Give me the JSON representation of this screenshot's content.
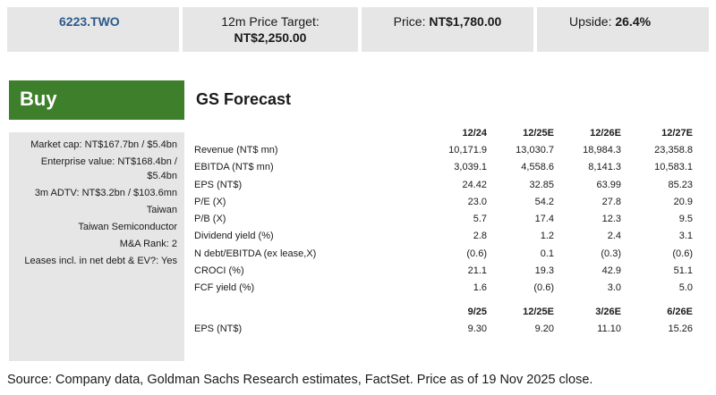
{
  "header": {
    "ticker": "6223.TWO",
    "target_label": "12m Price Target:",
    "target_value": "NT$2,250.00",
    "price_label": "Price:",
    "price_value": "NT$1,780.00",
    "upside_label": "Upside:",
    "upside_value": "26.4%"
  },
  "rating": "Buy",
  "company_info": [
    "Market cap: NT$167.7bn / $5.4bn",
    "Enterprise value: NT$168.4bn / $5.4bn",
    "3m ADTV: NT$3.2bn / $103.6mn",
    "Taiwan",
    "Taiwan Semiconductor",
    "M&A Rank: 2",
    "Leases incl. in net debt & EV?: Yes"
  ],
  "forecast": {
    "title": "GS Forecast",
    "columns": [
      "12/24",
      "12/25E",
      "12/26E",
      "12/27E"
    ],
    "rows": [
      {
        "label": "Revenue (NT$ mn)",
        "values": [
          "10,171.9",
          "13,030.7",
          "18,984.3",
          "23,358.8"
        ]
      },
      {
        "label": "EBITDA (NT$ mn)",
        "values": [
          "3,039.1",
          "4,558.6",
          "8,141.3",
          "10,583.1"
        ]
      },
      {
        "label": "EPS (NT$)",
        "values": [
          "24.42",
          "32.85",
          "63.99",
          "85.23"
        ]
      },
      {
        "label": "P/E (X)",
        "values": [
          "23.0",
          "54.2",
          "27.8",
          "20.9"
        ]
      },
      {
        "label": "P/B (X)",
        "values": [
          "5.7",
          "17.4",
          "12.3",
          "9.5"
        ]
      },
      {
        "label": "Dividend yield (%)",
        "values": [
          "2.8",
          "1.2",
          "2.4",
          "3.1"
        ]
      },
      {
        "label": "N debt/EBITDA (ex lease,X)",
        "values": [
          "(0.6)",
          "0.1",
          "(0.3)",
          "(0.6)"
        ]
      },
      {
        "label": "CROCI (%)",
        "values": [
          "21.1",
          "19.3",
          "42.9",
          "51.1"
        ]
      },
      {
        "label": "FCF yield (%)",
        "values": [
          "1.6",
          "(0.6)",
          "3.0",
          "5.0"
        ]
      }
    ],
    "quarter_columns": [
      "9/25",
      "12/25E",
      "3/26E",
      "6/26E"
    ],
    "quarter_rows": [
      {
        "label": "EPS (NT$)",
        "values": [
          "9.30",
          "9.20",
          "11.10",
          "15.26"
        ]
      }
    ]
  },
  "source": "Source: Company data, Goldman Sachs Research estimates, FactSet. Price as of 19 Nov 2025 close."
}
